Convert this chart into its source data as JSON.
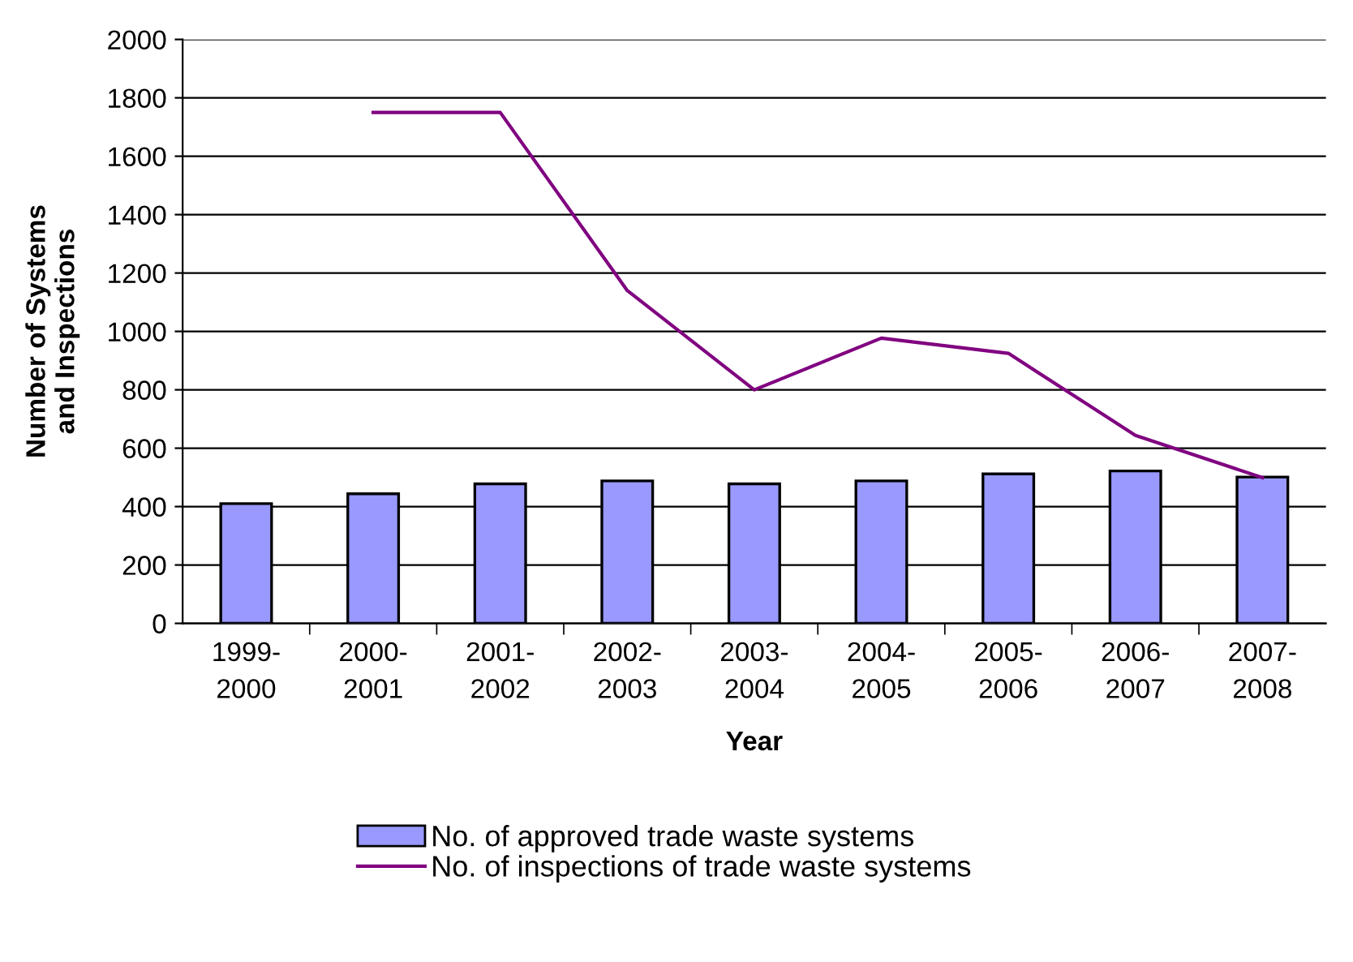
{
  "chart_data": {
    "type": "bar",
    "xlabel": "Year",
    "ylabel": "Number of Systems\nand Inspections",
    "categories": [
      "1999-\n2000",
      "2000-\n2001",
      "2001-\n2002",
      "2002-\n2003",
      "2003-\n2004",
      "2004-\n2005",
      "2005-\n2006",
      "2006-\n2007",
      "2007-\n2008"
    ],
    "series": [
      {
        "name": "No. of approved trade waste systems",
        "color": "#9999ff",
        "values": [
          410,
          444,
          478,
          488,
          478,
          488,
          512,
          522,
          501
        ]
      },
      {
        "name": "No. of inspections of trade waste systems",
        "type": "line",
        "color": "#800080",
        "values": [
          null,
          1750,
          1750,
          1140,
          800,
          977,
          925,
          644,
          499
        ]
      }
    ],
    "ylim": [
      0,
      2000
    ],
    "yticks": [
      0,
      200,
      400,
      600,
      800,
      1000,
      1200,
      1400,
      1600,
      1800,
      2000
    ],
    "grid": "y",
    "legend": "bottom",
    "marker": "none"
  }
}
